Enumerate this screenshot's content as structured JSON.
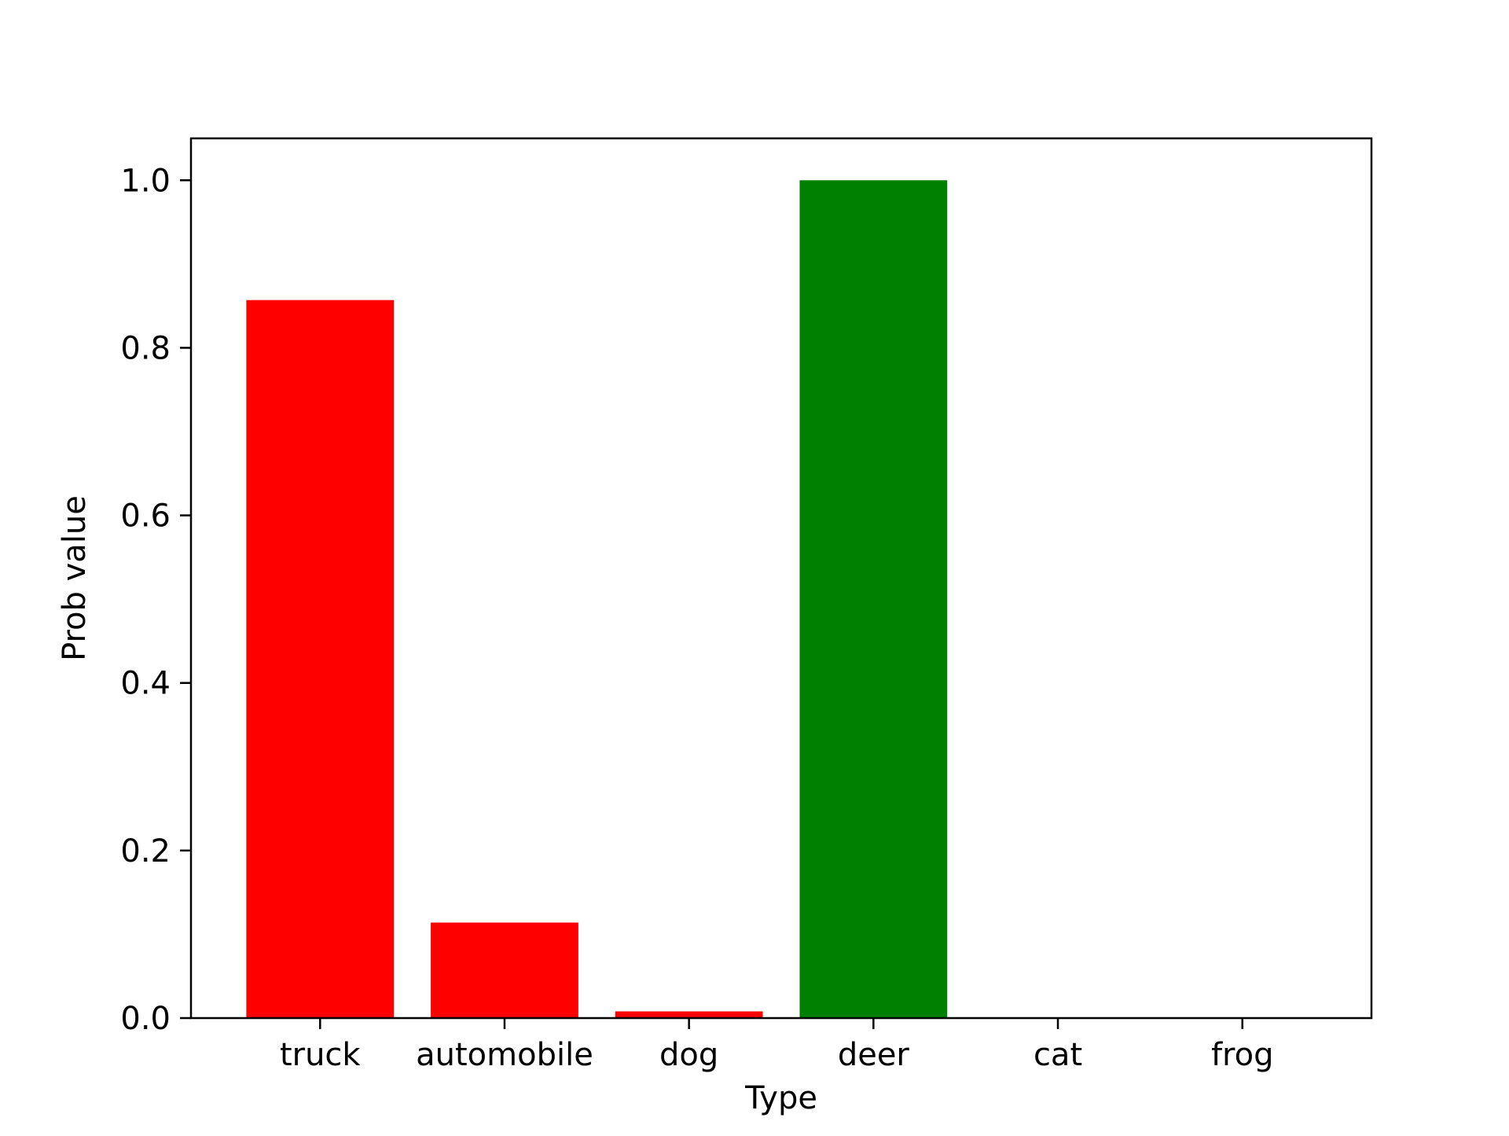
{
  "chart_data": {
    "type": "bar",
    "title": "",
    "xlabel": "Type",
    "ylabel": "Prob value",
    "categories": [
      "truck",
      "automobile",
      "dog",
      "deer",
      "cat",
      "frog"
    ],
    "values": [
      0.857,
      0.114,
      0.008,
      1.0,
      0.0,
      0.0
    ],
    "bar_colors": [
      "#ff0000",
      "#ff0000",
      "#ff0000",
      "#008000",
      "#ff0000",
      "#ff0000"
    ],
    "ylim": [
      0,
      1.05
    ],
    "yticks": [
      0.0,
      0.2,
      0.4,
      0.6,
      0.8,
      1.0
    ],
    "ytick_labels": [
      "0.0",
      "0.2",
      "0.4",
      "0.6",
      "0.8",
      "1.0"
    ],
    "grid": false,
    "legend": "none"
  }
}
